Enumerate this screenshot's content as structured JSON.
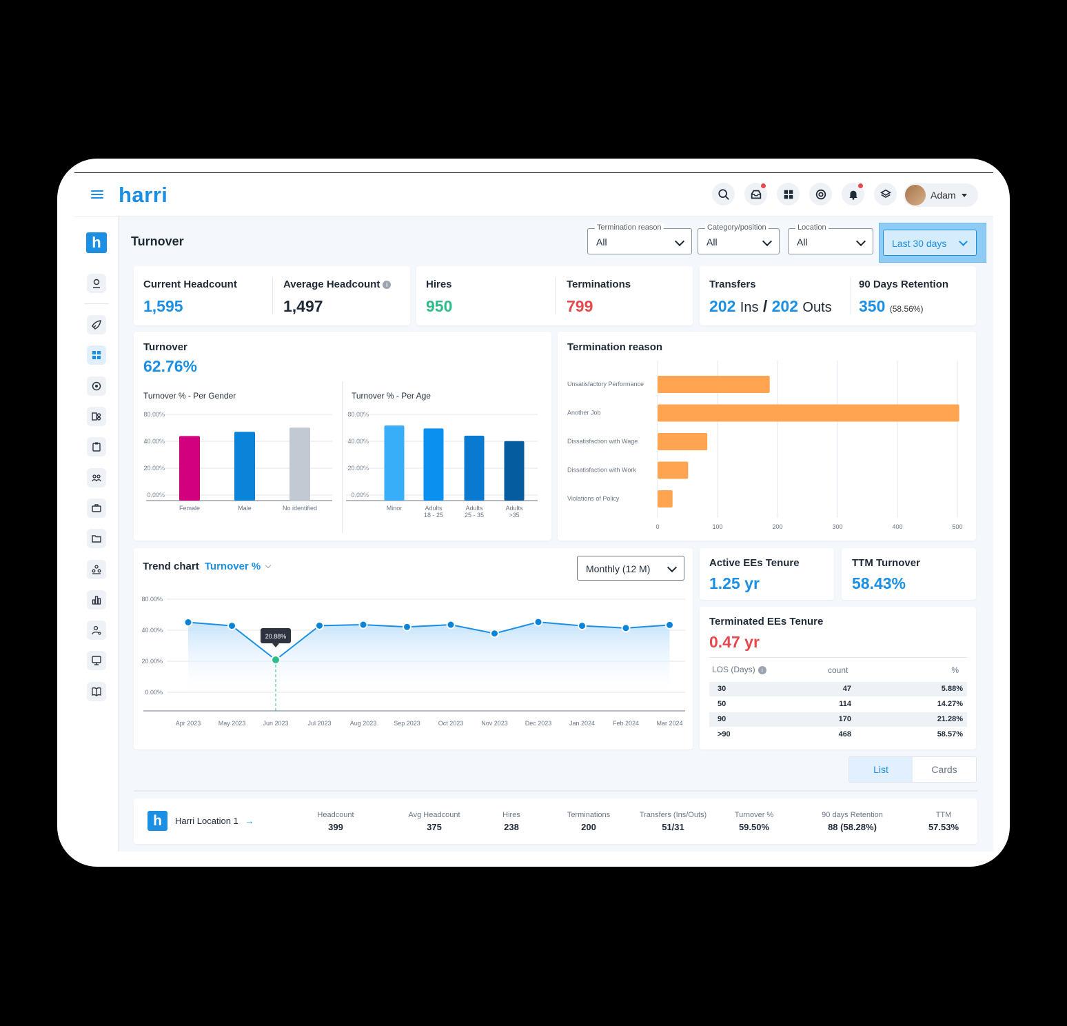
{
  "app": {
    "logo": "harri",
    "user": "Adam"
  },
  "topbar_icons": [
    "search-icon",
    "inbox-icon",
    "apps-grid-icon",
    "help-icon",
    "bell-icon",
    "layers-icon"
  ],
  "page": {
    "title": "Turnover"
  },
  "filters": {
    "termination_reason": {
      "label": "Termination reason",
      "value": "All"
    },
    "category_position": {
      "label": "Category/position",
      "value": "All"
    },
    "location": {
      "label": "Location",
      "value": "All"
    },
    "date_range": {
      "value": "Last 30 days"
    }
  },
  "kpis": {
    "current_headcount": {
      "label": "Current Headcount",
      "value": "1,595"
    },
    "average_headcount": {
      "label": "Average Headcount",
      "value": "1,497"
    },
    "hires": {
      "label": "Hires",
      "value": "950"
    },
    "terminations": {
      "label": "Terminations",
      "value": "799"
    },
    "transfers": {
      "label": "Transfers",
      "ins": "202",
      "ins_unit": "Ins",
      "sep": "/",
      "outs": "202",
      "outs_unit": "Outs"
    },
    "retention_90": {
      "label": "90 Days Retention",
      "value": "350",
      "pct": "(58.56%)"
    }
  },
  "turnover": {
    "label": "Turnover",
    "value": "62.76%",
    "gender_title": "Turnover % - Per Gender",
    "age_title": "Turnover % - Per Age"
  },
  "termination_reason": {
    "title": "Termination reason"
  },
  "trend": {
    "title": "Trend chart",
    "metric": "Turnover %",
    "period": "Monthly (12 M)",
    "tooltip": "20.88%"
  },
  "tenure": {
    "active": {
      "label": "Active EEs Tenure",
      "value": "1.25 yr"
    },
    "ttm": {
      "label": "TTM Turnover",
      "value": "58.43%"
    },
    "terminated": {
      "label": "Terminated EEs Tenure",
      "value": "0.47 yr"
    },
    "table": {
      "headers": [
        "LOS (Days)",
        "count",
        "%"
      ],
      "rows": [
        {
          "los": "30",
          "count": "47",
          "pct": "5.88%"
        },
        {
          "los": "50",
          "count": "114",
          "pct": "14.27%"
        },
        {
          "los": "90",
          "count": "170",
          "pct": "21.28%"
        },
        {
          "los": ">90",
          "count": "468",
          "pct": "58.57%"
        }
      ]
    }
  },
  "view_toggle": {
    "list": "List",
    "cards": "Cards",
    "selected": "List"
  },
  "locations": [
    {
      "name": "Harri Location 1",
      "cols": [
        {
          "h": "Headcount",
          "v": "399"
        },
        {
          "h": "Avg Headcount",
          "v": "375"
        },
        {
          "h": "Hires",
          "v": "238"
        },
        {
          "h": "Terminations",
          "v": "200"
        },
        {
          "h": "Transfers (Ins/Outs)",
          "v": "51/31"
        },
        {
          "h": "Turnover %",
          "v": "59.50%"
        },
        {
          "h": "90 days Retention",
          "v": "88 (58.28%)"
        },
        {
          "h": "TTM",
          "v": "57.53%"
        }
      ]
    }
  ],
  "colors": {
    "accent": "#1a8fe3",
    "green": "#2ebd8a",
    "red": "#e5484d",
    "orange": "#ffa552"
  },
  "chart_data": [
    {
      "type": "bar",
      "title": "Turnover % - Per Gender",
      "categories": [
        "Female",
        "Male",
        "No identified"
      ],
      "values": [
        47.8,
        54.1,
        60.4
      ],
      "colors": [
        "#d0007f",
        "#0a84d8",
        "#c2c9d3"
      ],
      "yticks": [
        "80.00%",
        "40.00%",
        "20.00%",
        "0.00%"
      ]
    },
    {
      "type": "bar",
      "title": "Turnover % - Per Age",
      "categories": [
        "Minor",
        "Adults 18 - 25",
        "Adults 25 - 35",
        "Adults >35"
      ],
      "category_lines": [
        [
          "Minor"
        ],
        [
          "Adults",
          "18 - 25"
        ],
        [
          "Adults",
          "25 - 35"
        ],
        [
          "Adults",
          ">35"
        ]
      ],
      "values": [
        63.5,
        59.1,
        48.3,
        40.3
      ],
      "colors": [
        "#38aef8",
        "#0a91f0",
        "#0a7ad1",
        "#055c9e"
      ],
      "yticks": [
        "80.00%",
        "40.00%",
        "20.00%",
        "0.00%"
      ]
    },
    {
      "type": "bar",
      "orientation": "horizontal",
      "title": "Termination reason",
      "categories": [
        "Unsatisfactory Performance",
        "Another Job",
        "Dissatisfaction with Wage",
        "Dissatisfaction with Work",
        "Violations of Policy"
      ],
      "values": [
        187,
        503,
        83,
        51,
        25
      ],
      "xticks": [
        "0",
        "100",
        "200",
        "300",
        "400",
        "500"
      ],
      "xlim": [
        0,
        500
      ]
    },
    {
      "type": "line",
      "title": "Trend chart",
      "x": [
        "Apr 2023",
        "May 2023",
        "Jun 2023",
        "Jul 2023",
        "Aug 2023",
        "Sep 2023",
        "Oct 2023",
        "Nov 2023",
        "Dec 2023",
        "Jan 2024",
        "Feb 2024",
        "Mar 2024"
      ],
      "values": [
        50.2,
        45.7,
        20.88,
        45.9,
        47.1,
        44.2,
        47.1,
        37.9,
        50.6,
        45.7,
        42.8,
        46.8
      ],
      "highlight_index": 2,
      "yticks": [
        "80.00%",
        "40.00%",
        "20.00%",
        "0.00%"
      ]
    }
  ]
}
